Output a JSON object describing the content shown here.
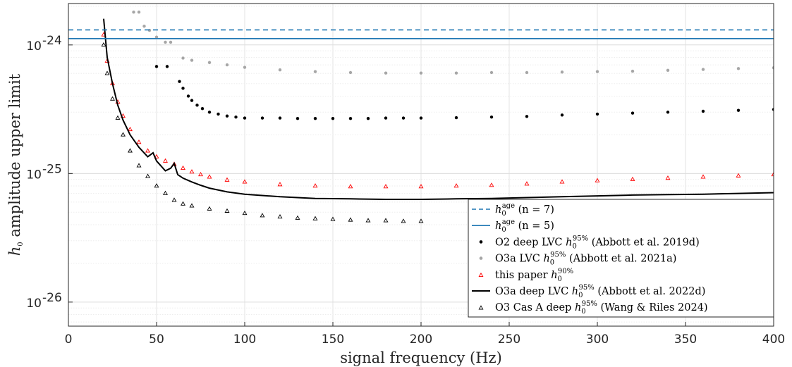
{
  "chart_data": {
    "type": "scatter",
    "xlabel": "signal frequency (Hz)",
    "ylabel": "amplitude upper limit",
    "ylabel_symbol": "h",
    "ylabel_sub": "0",
    "x_scale": "linear",
    "y_scale": "log",
    "xlim": [
      0,
      400
    ],
    "ylim": [
      6.5e-27,
      2.1e-24
    ],
    "grid": true,
    "legend_position": "bottom-right",
    "x_ticks": [
      0,
      50,
      100,
      150,
      200,
      250,
      300,
      350,
      400
    ],
    "x_tick_labels": [
      "0",
      "50",
      "100",
      "150",
      "200",
      "250",
      "300",
      "350",
      "400"
    ],
    "y_ticks": [
      1e-26,
      1e-25,
      1e-24
    ],
    "y_tick_labels": [
      {
        "base": "10",
        "exp": "-26"
      },
      {
        "base": "10",
        "exp": "-25"
      },
      {
        "base": "10",
        "exp": "-24"
      }
    ],
    "hlines": [
      {
        "name": "h0age (n = 7)",
        "y": 1.31e-24,
        "style": "dashed",
        "color": "#1f77b4"
      },
      {
        "name": "h0age (n = 5)",
        "y": 1.12e-24,
        "style": "solid",
        "color": "#1f77b4"
      }
    ],
    "series": [
      {
        "name": "O2 deep LVC h0 95% (Abbott et al. 2019d)",
        "marker": "dot",
        "color": "#000000",
        "x": [
          50,
          56,
          63,
          65,
          68,
          70,
          73,
          76,
          80,
          85,
          90,
          95,
          100,
          110,
          120,
          130,
          140,
          150,
          160,
          170,
          180,
          190,
          200,
          220,
          240,
          260,
          280,
          300,
          320,
          340,
          360,
          380,
          400
        ],
        "y": [
          6.8e-25,
          6.8e-25,
          5.2e-25,
          4.6e-25,
          4e-25,
          3.7e-25,
          3.4e-25,
          3.2e-25,
          3e-25,
          2.9e-25,
          2.8e-25,
          2.75e-25,
          2.7e-25,
          2.7e-25,
          2.7e-25,
          2.68e-25,
          2.68e-25,
          2.68e-25,
          2.68e-25,
          2.68e-25,
          2.7e-25,
          2.7e-25,
          2.7e-25,
          2.72e-25,
          2.75e-25,
          2.78e-25,
          2.85e-25,
          2.9e-25,
          2.95e-25,
          3e-25,
          3.05e-25,
          3.1e-25,
          3.15e-25
        ]
      },
      {
        "name": "O3a LVC h0 95% (Abbott et al. 2021a)",
        "marker": "dot",
        "color": "#a6a6a6",
        "x": [
          37,
          40,
          43,
          46,
          50,
          55,
          58,
          65,
          70,
          80,
          90,
          100,
          120,
          140,
          160,
          180,
          200,
          220,
          240,
          260,
          280,
          300,
          320,
          340,
          360,
          380,
          400
        ],
        "y": [
          1.8e-24,
          1.8e-24,
          1.4e-24,
          1.3e-24,
          1.15e-24,
          1.05e-24,
          1.05e-24,
          7.9e-25,
          7.6e-25,
          7.3e-25,
          7e-25,
          6.7e-25,
          6.4e-25,
          6.2e-25,
          6.1e-25,
          6.05e-25,
          6.05e-25,
          6.05e-25,
          6.1e-25,
          6.1e-25,
          6.15e-25,
          6.2e-25,
          6.25e-25,
          6.35e-25,
          6.45e-25,
          6.55e-25,
          6.65e-25
        ]
      },
      {
        "name": "this paper h0 90%",
        "marker": "triangle",
        "color": "#ff0000",
        "x": [
          20,
          22,
          25,
          28,
          31,
          35,
          40,
          45,
          50,
          55,
          60,
          65,
          70,
          75,
          80,
          90,
          100,
          120,
          140,
          160,
          180,
          200,
          220,
          240,
          260,
          280,
          300,
          320,
          340,
          360,
          380,
          400
        ],
        "y": [
          1.2e-24,
          7.5e-25,
          5e-25,
          3.6e-25,
          2.8e-25,
          2.2e-25,
          1.75e-25,
          1.5e-25,
          1.35e-25,
          1.25e-25,
          1.18e-25,
          1.1e-25,
          1.03e-25,
          9.8e-26,
          9.4e-26,
          8.9e-26,
          8.6e-26,
          8.2e-26,
          8e-26,
          7.9e-26,
          7.9e-26,
          7.9e-26,
          8e-26,
          8.1e-26,
          8.3e-26,
          8.6e-26,
          8.8e-26,
          9e-26,
          9.2e-26,
          9.4e-26,
          9.6e-26,
          9.8e-26
        ]
      },
      {
        "name": "O3a deep LVC h0 95% (Abbott et al. 2022d)",
        "marker": "line",
        "color": "#000000",
        "x": [
          20,
          22,
          25,
          28,
          31,
          35,
          40,
          45,
          48,
          50,
          55,
          58,
          60,
          62,
          65,
          70,
          75,
          80,
          90,
          100,
          120,
          140,
          160,
          180,
          200,
          220,
          240,
          260,
          280,
          300,
          320,
          340,
          360,
          380,
          400
        ],
        "y": [
          1.6e-24,
          8e-25,
          5e-25,
          3.4e-25,
          2.6e-25,
          2e-25,
          1.6e-25,
          1.35e-25,
          1.45e-25,
          1.25e-25,
          1.05e-25,
          1.1e-25,
          1.2e-25,
          9.8e-26,
          9.2e-26,
          8.6e-26,
          8.1e-26,
          7.7e-26,
          7.2e-26,
          6.9e-26,
          6.6e-26,
          6.4e-26,
          6.35e-26,
          6.3e-26,
          6.3e-26,
          6.35e-26,
          6.4e-26,
          6.5e-26,
          6.6e-26,
          6.7e-26,
          6.8e-26,
          6.85e-26,
          6.9e-26,
          7e-26,
          7.1e-26
        ]
      },
      {
        "name": "O3 Cas A deep h0 95% (Wang & Riles 2024)",
        "marker": "triangle",
        "color": "#000000",
        "x": [
          20,
          22,
          25,
          28,
          31,
          35,
          40,
          45,
          50,
          55,
          60,
          65,
          70,
          80,
          90,
          100,
          110,
          120,
          130,
          140,
          150,
          160,
          170,
          180,
          190,
          200
        ],
        "y": [
          1e-24,
          6e-25,
          3.8e-25,
          2.7e-25,
          2e-25,
          1.5e-25,
          1.15e-25,
          9.5e-26,
          8e-26,
          7e-26,
          6.2e-26,
          5.8e-26,
          5.6e-26,
          5.3e-26,
          5.1e-26,
          4.9e-26,
          4.7e-26,
          4.6e-26,
          4.5e-26,
          4.45e-26,
          4.4e-26,
          4.35e-26,
          4.3e-26,
          4.3e-26,
          4.25e-26,
          4.25e-26
        ]
      }
    ],
    "legend": [
      {
        "main": "h",
        "sub": "0",
        "sup": "age",
        "rest": "(n = 7)",
        "style": "dashed-line",
        "color": "#1f77b4"
      },
      {
        "main": "h",
        "sub": "0",
        "sup": "age",
        "rest": "(n = 5)",
        "style": "solid-line",
        "color": "#1f77b4"
      },
      {
        "pre": "O2 deep LVC",
        "main": "h",
        "sub": "0",
        "sup": "95%",
        "rest": "(Abbott et al. 2019d)",
        "style": "dot",
        "color": "#000000"
      },
      {
        "pre": "O3a LVC",
        "main": "h",
        "sub": "0",
        "sup": "95%",
        "rest": "(Abbott et al. 2021a)",
        "style": "dot",
        "color": "#a6a6a6"
      },
      {
        "pre": "this paper",
        "main": "h",
        "sub": "0",
        "sup": "90%",
        "rest": "",
        "style": "triangle",
        "color": "#ff0000"
      },
      {
        "pre": "O3a deep LVC",
        "main": "h",
        "sub": "0",
        "sup": "95%",
        "rest": "(Abbott et al. 2022d)",
        "style": "solid-line",
        "color": "#000000"
      },
      {
        "pre": "O3 Cas A deep",
        "main": "h",
        "sub": "0",
        "sup": "95%",
        "rest": "(Wang & Riles 2024)",
        "style": "triangle",
        "color": "#000000"
      }
    ]
  }
}
